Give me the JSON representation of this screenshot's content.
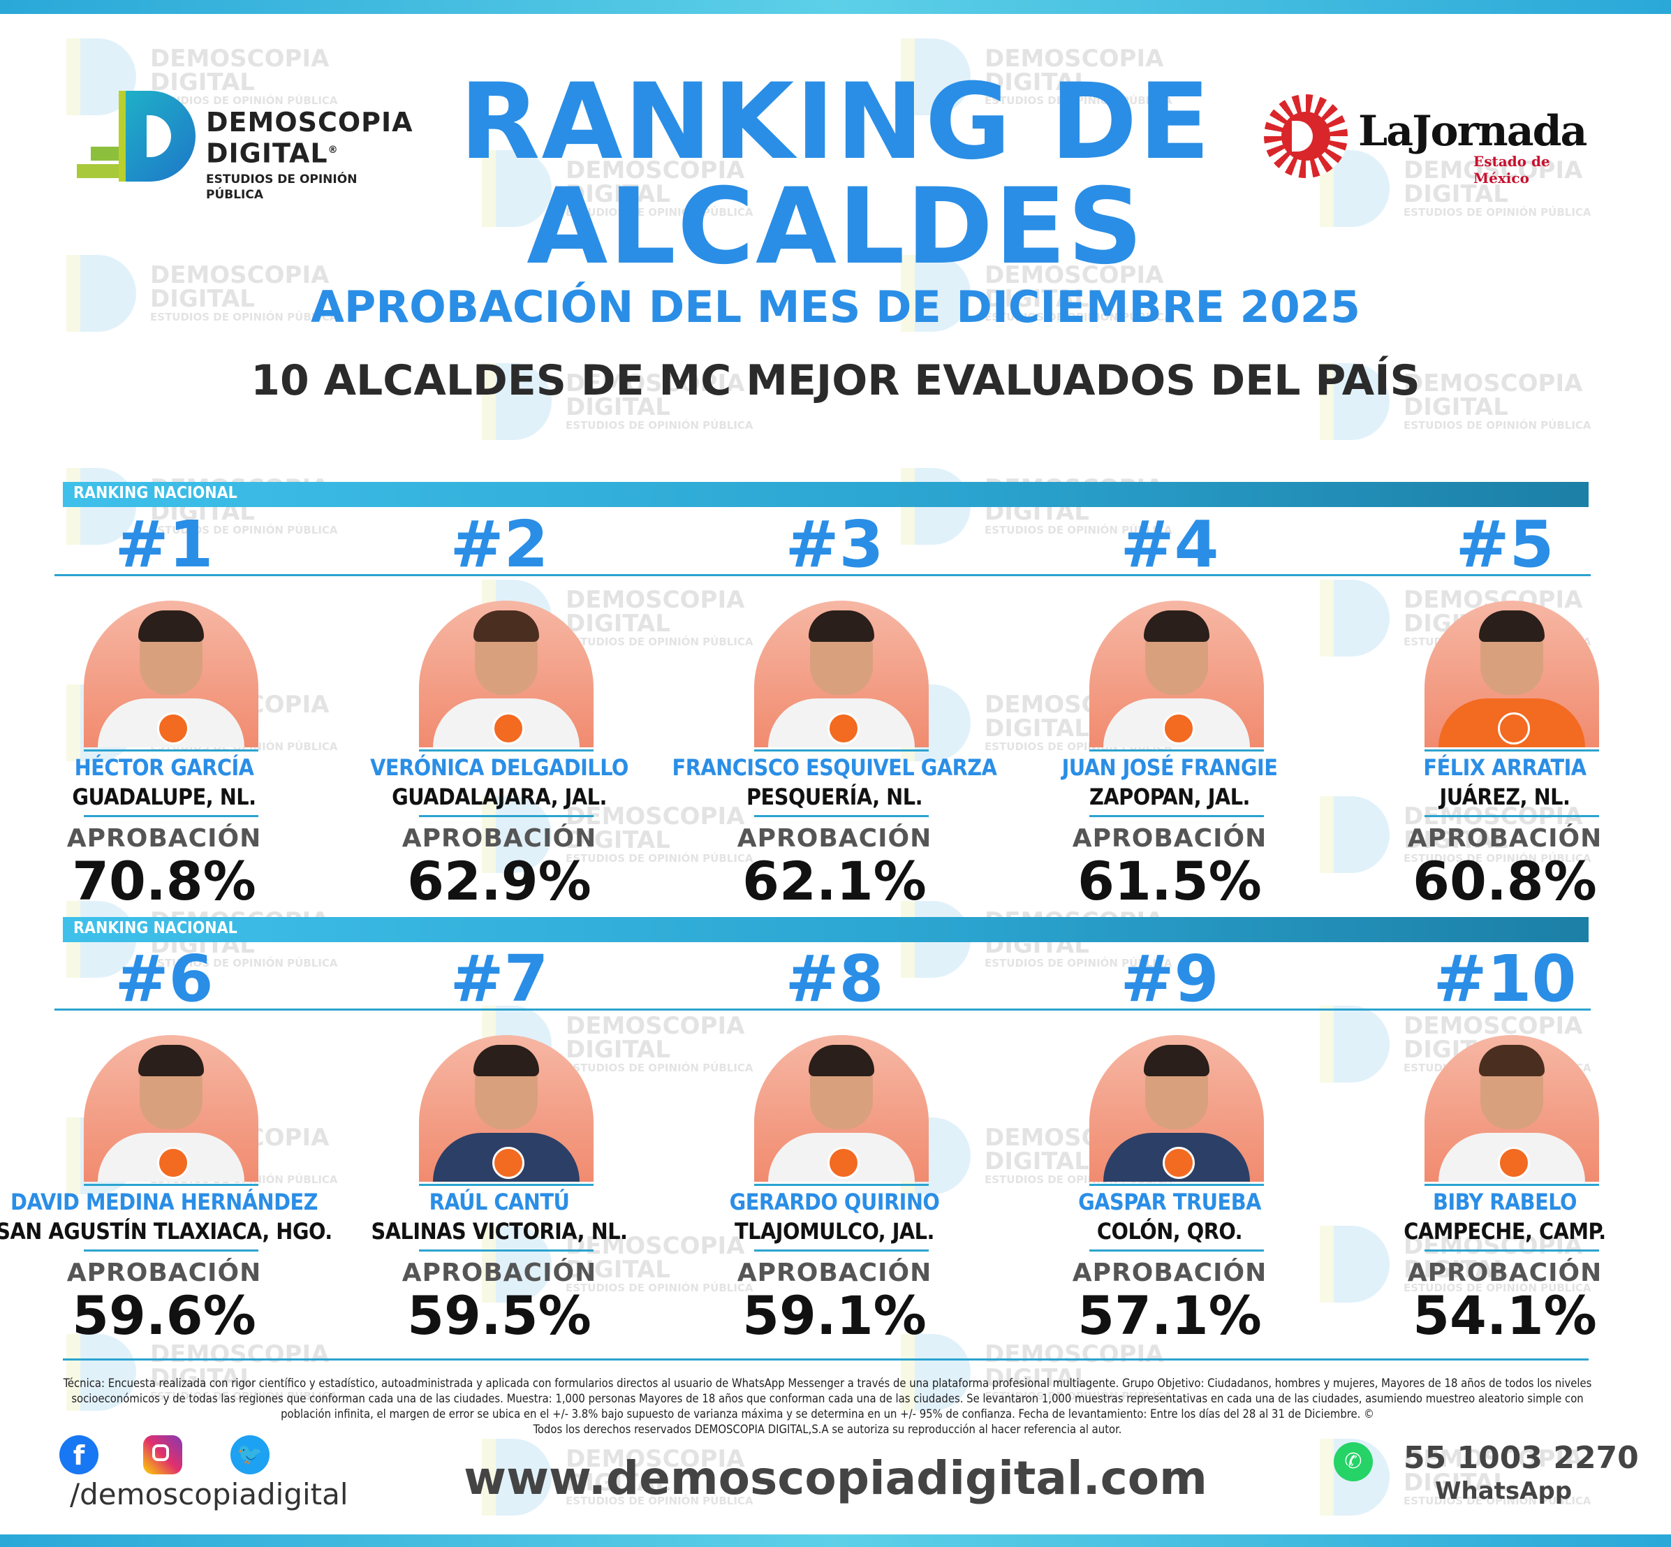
{
  "header": {
    "title_line1": "RANKING DE",
    "title_line2": "ALCALDES",
    "subtitle": "APROBACIÓN DEL MES DE DICIEMBRE 2025",
    "tagline": "10 ALCALDES DE MC MEJOR EVALUADOS DEL PAÍS"
  },
  "logo_left": {
    "line1": "DEMOSCOPIA",
    "line2": "DIGITAL",
    "registered": "®",
    "line3": "ESTUDIOS DE OPINIÓN PÚBLICA"
  },
  "logo_right": {
    "name": "LaJornada",
    "sub": "Estado de México"
  },
  "watermark": {
    "line1": "DEMOSCOPIA",
    "line2": "DIGITAL",
    "line3": "ESTUDIOS DE OPINIÓN PÚBLICA"
  },
  "section_label": "RANKING NACIONAL",
  "approval_label": "APROBACIÓN",
  "mayors": [
    {
      "rank": "#1",
      "name": "HÉCTOR GARCÍA",
      "city": "GUADALUPE, NL.",
      "approval": "70.8%",
      "value": 70.8
    },
    {
      "rank": "#2",
      "name": "VERÓNICA DELGADILLO",
      "city": "GUADALAJARA, JAL.",
      "approval": "62.9%",
      "value": 62.9
    },
    {
      "rank": "#3",
      "name": "FRANCISCO ESQUIVEL GARZA",
      "city": "PESQUERÍA, NL.",
      "approval": "62.1%",
      "value": 62.1
    },
    {
      "rank": "#4",
      "name": "JUAN JOSÉ FRANGIE",
      "city": "ZAPOPAN, JAL.",
      "approval": "61.5%",
      "value": 61.5
    },
    {
      "rank": "#5",
      "name": "FÉLIX ARRATIA",
      "city": "JUÁREZ, NL.",
      "approval": "60.8%",
      "value": 60.8
    },
    {
      "rank": "#6",
      "name": "DAVID MEDINA HERNÁNDEZ",
      "city": "SAN AGUSTÍN TLAXIACA, HGO.",
      "approval": "59.6%",
      "value": 59.6
    },
    {
      "rank": "#7",
      "name": "RAÚL CANTÚ",
      "city": "SALINAS VICTORIA, NL.",
      "approval": "59.5%",
      "value": 59.5
    },
    {
      "rank": "#8",
      "name": "GERARDO QUIRINO",
      "city": "TLAJOMULCO, JAL.",
      "approval": "59.1%",
      "value": 59.1
    },
    {
      "rank": "#9",
      "name": "GASPAR TRUEBA",
      "city": "COLÓN, QRO.",
      "approval": "57.1%",
      "value": 57.1
    },
    {
      "rank": "#10",
      "name": "BIBY RABELO",
      "city": "CAMPECHE, CAMP.",
      "approval": "54.1%",
      "value": 54.1
    }
  ],
  "footer": {
    "methodology": "Técnica: Encuesta realizada con rigor científico y estadístico, autoadministrada y aplicada con formularios directos al usuario de WhatsApp Messenger a través de una plataforma profesional multiagente. Grupo Objetivo: Ciudadanos, hombres y mujeres, Mayores de 18 años de todos los niveles socioeconómicos y de todas las regiones que conforman cada una de las ciudades. Muestra: 1,000 personas Mayores de 18 años que conforman cada una de las ciudades. Se levantaron 1,000 muestras representativas en cada una de las ciudades, asumiendo muestreo aleatorio simple con población infinita, el margen de error se ubica en el +/- 3.8% bajo supuesto de varianza máxima y se determina en un +/- 95% de confianza. Fecha de levantamiento: Entre los días del 28 al 31 de Diciembre. ©",
    "rights": "Todos los derechos reservados DEMOSCOPIA DIGITAL,S.A se autoriza su reproducción al hacer referencia al autor.",
    "handle": "/demoscopiadigital",
    "website": "www.demoscopiadigital.com",
    "phone": "55 1003 2270",
    "whatsapp_label": "WhatsApp",
    "icons": [
      "facebook-icon",
      "instagram-icon",
      "twitter-icon",
      "whatsapp-icon"
    ]
  },
  "colors": {
    "accent_blue": "#2a8ee6",
    "bar_teal": "#2aa3cf",
    "photo_bg": "#f18b6f",
    "mc_orange": "#f36a21"
  }
}
